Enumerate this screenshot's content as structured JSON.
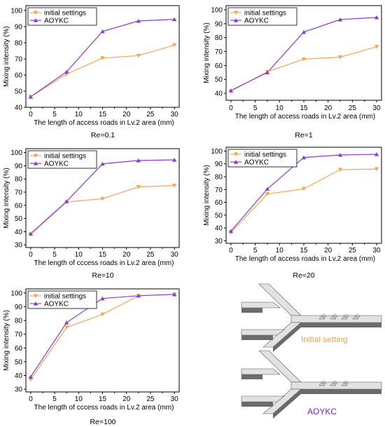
{
  "colors": {
    "initial": "#f5a556",
    "aoykc": "#8b3ad6",
    "initial_label": "#f0a04b",
    "aoykc_label": "#7a1fc9"
  },
  "chart_data": [
    {
      "type": "line",
      "re_label": "Re=0.1",
      "xlabel": "The length of access roads in  Lv.2 area (mm)",
      "ylabel": "Mixing intensity (%)",
      "x": [
        0,
        7.5,
        15,
        22.5,
        30
      ],
      "xticks": [
        0,
        5,
        10,
        15,
        20,
        25,
        30
      ],
      "yticks": [
        40,
        50,
        60,
        70,
        80,
        90,
        100
      ],
      "xlim": [
        -1,
        31
      ],
      "ylim": [
        40,
        103
      ],
      "series": [
        {
          "name": "initial settings",
          "values": [
            46.5,
            60.5,
            70.5,
            72,
            78.5
          ]
        },
        {
          "name": "AOYKC",
          "values": [
            46.5,
            62,
            87,
            93.5,
            94.5
          ]
        }
      ]
    },
    {
      "type": "line",
      "re_label": "Re=1",
      "xlabel": "The length of access roads in  Lv.2 area (mm)",
      "ylabel": "Mixing intensity (%)",
      "x": [
        0,
        7.5,
        15,
        22.5,
        30
      ],
      "xticks": [
        0,
        5,
        10,
        15,
        20,
        25,
        30
      ],
      "yticks": [
        40,
        50,
        60,
        70,
        80,
        90,
        100
      ],
      "xlim": [
        -1,
        31
      ],
      "ylim": [
        35,
        103
      ],
      "series": [
        {
          "name": "initial settings",
          "values": [
            41.5,
            55.5,
            64.5,
            66,
            73.5
          ]
        },
        {
          "name": "AOYKC",
          "values": [
            42,
            55,
            84,
            93,
            94.5
          ]
        }
      ]
    },
    {
      "type": "line",
      "re_label": "Re=10",
      "xlabel": "The length of cccess roads in Lv.2 area (mm)",
      "ylabel": "Mixing intensity (%)",
      "x": [
        0,
        7.5,
        15,
        22.5,
        30
      ],
      "xticks": [
        0,
        5,
        10,
        15,
        20,
        25,
        30
      ],
      "yticks": [
        30,
        40,
        50,
        60,
        70,
        80,
        90,
        100
      ],
      "xlim": [
        -1,
        31
      ],
      "ylim": [
        28,
        103
      ],
      "series": [
        {
          "name": "initial settings",
          "values": [
            38,
            62.5,
            65,
            74,
            75
          ]
        },
        {
          "name": "AOYKC",
          "values": [
            38.5,
            63,
            91.5,
            94,
            94.5
          ]
        }
      ]
    },
    {
      "type": "line",
      "re_label": "Re=20",
      "xlabel": "The length of access roads in Lv.2 area (mm)",
      "ylabel": "Mixing intensity (%)",
      "x": [
        0,
        7.5,
        15,
        22.5,
        30
      ],
      "xticks": [
        0,
        5,
        10,
        15,
        20,
        25,
        30
      ],
      "yticks": [
        30,
        40,
        50,
        60,
        70,
        80,
        90,
        100
      ],
      "xlim": [
        -1,
        31
      ],
      "ylim": [
        28,
        103
      ],
      "series": [
        {
          "name": "initial settings",
          "values": [
            36.5,
            66.5,
            70.5,
            85.5,
            86
          ]
        },
        {
          "name": "AOYKC",
          "values": [
            37.5,
            70.5,
            95,
            97,
            97.5
          ]
        }
      ]
    },
    {
      "type": "line",
      "re_label": "Re=100",
      "xlabel": "The length of cccess roads in Lv.2 area (mm)",
      "ylabel": "Mixing intensity (%)",
      "x": [
        0,
        7.5,
        15,
        22.5,
        30
      ],
      "xticks": [
        0,
        5,
        10,
        15,
        20,
        25,
        30
      ],
      "yticks": [
        30,
        40,
        50,
        60,
        70,
        80,
        90,
        100
      ],
      "xlim": [
        -1,
        31
      ],
      "ylim": [
        28,
        103
      ],
      "series": [
        {
          "name": "initial settings",
          "values": [
            37,
            75,
            84.5,
            98,
            99
          ]
        },
        {
          "name": "AOYKC",
          "values": [
            39,
            78.5,
            96,
            98,
            99
          ]
        }
      ]
    }
  ],
  "diagrams": {
    "initial_label": "Initial setting",
    "aoykc_label": "AOYKC"
  }
}
